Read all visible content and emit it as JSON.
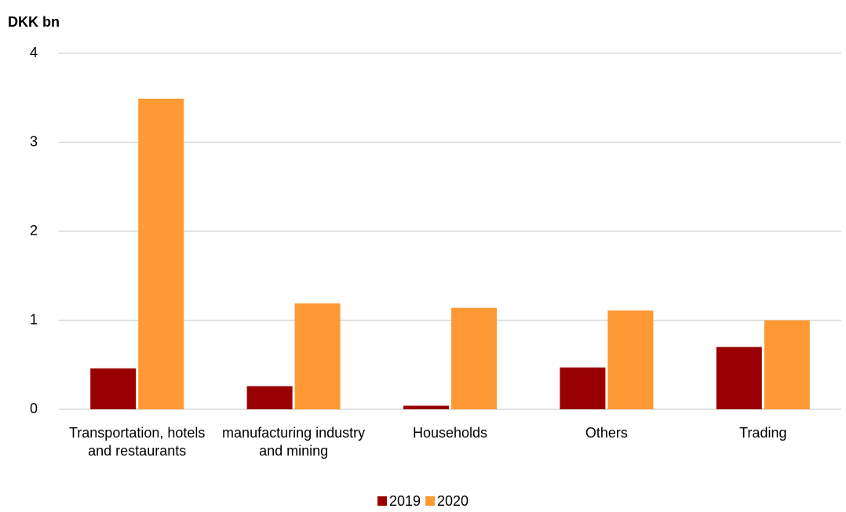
{
  "chart_data": {
    "type": "bar",
    "y_label": "DKK bn",
    "categories": [
      "Transportation, hotels and restaurants",
      "manufacturing industry and mining",
      "Households",
      "Others",
      "Trading"
    ],
    "series": [
      {
        "name": "2019",
        "color": "#990000",
        "values": [
          0.46,
          0.26,
          0.04,
          0.47,
          0.7
        ]
      },
      {
        "name": "2020",
        "color": "#ff9933",
        "values": [
          3.49,
          1.19,
          1.14,
          1.11,
          1.0
        ]
      }
    ],
    "ylim": [
      0,
      4
    ],
    "yticks": [
      0,
      1,
      2,
      3,
      4
    ],
    "grid": true,
    "legend": "bottom"
  }
}
